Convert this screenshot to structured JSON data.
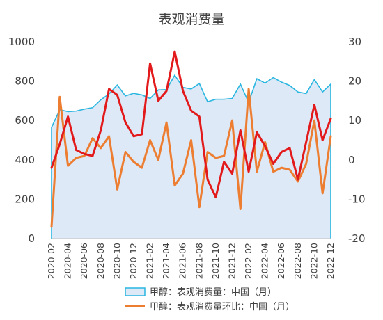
{
  "chart_data": {
    "type": "line",
    "title": "表观消费量",
    "x": [
      "2020-02",
      "2020-03",
      "2020-04",
      "2020-05",
      "2020-06",
      "2020-07",
      "2020-08",
      "2020-09",
      "2020-10",
      "2020-11",
      "2020-12",
      "2021-01",
      "2021-02",
      "2021-03",
      "2021-04",
      "2021-05",
      "2021-06",
      "2021-07",
      "2021-08",
      "2021-09",
      "2021-10",
      "2021-11",
      "2021-12",
      "2022-01",
      "2022-02",
      "2022-03",
      "2022-04",
      "2022-05",
      "2022-06",
      "2022-07",
      "2022-08",
      "2022-09",
      "2022-10",
      "2022-11",
      "2022-12"
    ],
    "x_tick_labels": [
      "2020-02",
      "2020-04",
      "2020-06",
      "2020-08",
      "2020-10",
      "2020-12",
      "2021-02",
      "2021-04",
      "2021-06",
      "2021-08",
      "2021-10",
      "2021-12",
      "2022-02",
      "2022-04",
      "2022-06",
      "2022-08",
      "2022-10",
      "2022-12"
    ],
    "y_left": {
      "range": [
        0,
        1000
      ],
      "ticks": [
        "0",
        "200",
        "400",
        "600",
        "800",
        "1000"
      ]
    },
    "y_right": {
      "range": [
        -20,
        30
      ],
      "ticks": [
        "-20",
        "-10",
        "0",
        "10",
        "20",
        "30"
      ]
    },
    "series": [
      {
        "name": "甲醇：表观消费量：中国（月）",
        "type": "area",
        "axis": "left",
        "color": "#29b6e0",
        "fill": "#dde9f6",
        "values": [
          565,
          655,
          645,
          648,
          658,
          665,
          705,
          735,
          780,
          725,
          738,
          730,
          712,
          755,
          757,
          830,
          768,
          760,
          788,
          695,
          708,
          708,
          712,
          785,
          692,
          812,
          790,
          818,
          795,
          778,
          745,
          737,
          808,
          745,
          785
        ]
      },
      {
        "name": "甲醇：表观消费量环比：中国（月）",
        "type": "line",
        "axis": "right",
        "color": "#ed7d31",
        "values": [
          -17,
          16,
          -1.5,
          0.5,
          1,
          5.5,
          3,
          6,
          -7.5,
          2,
          -0.5,
          -2,
          5,
          0,
          9.5,
          -6.5,
          -3.5,
          5,
          -12,
          2,
          0.5,
          1,
          10,
          -12.5,
          18,
          -3,
          4.5,
          -3,
          -2,
          -2.5,
          -5.5,
          -1,
          10,
          -8.5,
          6
        ]
      },
      {
        "name": "",
        "type": "line",
        "axis": "right",
        "color": "#e31a1c",
        "values": [
          -2,
          4,
          11,
          2.5,
          1.5,
          1,
          7.5,
          18,
          16.5,
          9.5,
          6,
          6.5,
          24.5,
          15,
          17.5,
          27.5,
          17.5,
          12.5,
          11,
          -5,
          -9.5,
          -0.5,
          -3.5,
          7.5,
          -3,
          7,
          3.5,
          -1,
          2,
          3,
          -5,
          4.5,
          14,
          5,
          10.5
        ]
      }
    ],
    "legend": {
      "position": "bottom",
      "entries": [
        "甲醇：表观消费量：中国（月）",
        "甲醇：表观消费量环比：中国（月）"
      ]
    },
    "grid": false
  }
}
